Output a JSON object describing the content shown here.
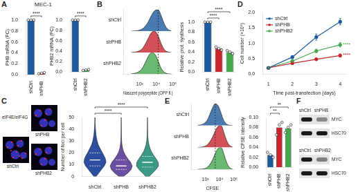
{
  "panel_labels": [
    "A",
    "B",
    "C",
    "D",
    "E",
    "F"
  ],
  "subtitle": "MEC-1",
  "chart_data": [
    {
      "type": "bar",
      "categories": [
        "shCtrl",
        "shPHB"
      ],
      "values": [
        1.0,
        0.03
      ],
      "replicates": [
        [
          1.0,
          1.0,
          1.0
        ],
        [
          0.02,
          0.03,
          0.04
        ]
      ],
      "colors": [
        "#1b5a9c",
        "#c8262c"
      ],
      "ylabel": "PHB mRNA (FC)",
      "ylim": [
        0,
        1
      ],
      "yticks": [
        {
          "value": 0,
          "label": "0.0"
        },
        0.2,
        0.4,
        0.6,
        0.8,
        {
          "value": 1,
          "label": "1.0"
        }
      ],
      "significance": [
        {
          "between": [
            "shCtrl",
            "shPHB"
          ],
          "label": "****"
        }
      ]
    },
    {
      "type": "bar",
      "categories": [
        "shCtrl",
        "shPHB2"
      ],
      "values": [
        1.0,
        0.04
      ],
      "replicates": [
        [
          1.0,
          1.0,
          1.0
        ],
        [
          0.03,
          0.04,
          0.05
        ]
      ],
      "colors": [
        "#1b5a9c",
        "#44a84c"
      ],
      "ylabel": "PHB2 mRNA (FC)",
      "ylim": [
        0,
        1
      ],
      "yticks": [
        {
          "value": 0,
          "label": "0.0"
        },
        0.2,
        0.4,
        0.6,
        0.8,
        {
          "value": 1,
          "label": "1.0"
        }
      ],
      "significance": [
        {
          "between": [
            "shCtrl",
            "shPHB2"
          ],
          "label": "****"
        }
      ]
    },
    {
      "type": "ridgeline",
      "xlabel": "Nascent polypeptide (OPP fl.)",
      "log": "x",
      "tick_labels": "x",
      "x": [
        300,
        500,
        800,
        1300,
        2000,
        3200,
        5000,
        8000,
        13000,
        20000,
        32000,
        50000,
        80000
      ],
      "xlim": [
        100,
        100000
      ],
      "xticks": [
        {
          "value": 1000,
          "label": "10³"
        },
        {
          "value": 10000,
          "label": "10⁴"
        },
        {
          "value": 100000,
          "label": "10⁵"
        }
      ],
      "ylim": [
        0,
        1
      ],
      "reference_line": 13000,
      "series": [
        {
          "name": "shPHB2",
          "color": "#44a84c",
          "values": [
            0.01,
            0.03,
            0.09,
            0.22,
            0.48,
            0.8,
            1.0,
            0.93,
            0.6,
            0.25,
            0.07,
            0.01,
            0
          ]
        },
        {
          "name": "shPHB",
          "color": "#c8262c",
          "values": [
            0,
            0.02,
            0.06,
            0.15,
            0.35,
            0.65,
            0.92,
            1.0,
            0.78,
            0.4,
            0.12,
            0.03,
            0
          ]
        },
        {
          "name": "shCtrl",
          "color": "#1b5a9c",
          "values": [
            0,
            0.01,
            0.03,
            0.08,
            0.2,
            0.42,
            0.72,
            0.95,
            1.0,
            0.7,
            0.3,
            0.08,
            0.01
          ]
        }
      ]
    },
    {
      "type": "bar",
      "categories": [
        "shCtrl",
        "shPHB",
        "shPHB2"
      ],
      "values": [
        1.0,
        0.47,
        0.4
      ],
      "replicates": [
        [
          1.0,
          1.0,
          1.0
        ],
        [
          0.5,
          0.47,
          0.44
        ],
        [
          0.43,
          0.4,
          0.37
        ]
      ],
      "colors": [
        "#1b5a9c",
        "#c8262c",
        "#44a84c"
      ],
      "ylabel": "Relative prot. synthesis",
      "ylim": [
        0,
        1
      ],
      "yticks": [
        {
          "value": 0,
          "label": "0.0"
        },
        0.2,
        0.4,
        0.6,
        0.8,
        {
          "value": 1,
          "label": "1.0"
        }
      ],
      "significance": [
        {
          "between": [
            "shCtrl",
            "shPHB"
          ],
          "label": "****"
        },
        {
          "between": [
            "shCtrl",
            "shPHB2"
          ],
          "label": "****"
        }
      ]
    },
    {
      "type": "violin",
      "categories": [
        "shCtrl",
        "shPHB",
        "shPHB2"
      ],
      "colors": [
        "#2b4f9e",
        "#6a4fa3",
        "#3a9a86"
      ],
      "ylabel": "Number of foci per cell",
      "ylim": [
        0,
        50
      ],
      "yticks": [
        0,
        10,
        20,
        30,
        40,
        50
      ],
      "violin_y": [
        0,
        3,
        6,
        9,
        12,
        15,
        18,
        21,
        24,
        27,
        30,
        35,
        40,
        45,
        50
      ],
      "violin_widths": [
        [
          0.1,
          0.35,
          0.6,
          0.85,
          1.0,
          0.95,
          0.8,
          0.62,
          0.45,
          0.3,
          0.2,
          0.1,
          0.05,
          0.02,
          0.01
        ],
        [
          0.2,
          0.6,
          0.9,
          1.0,
          0.85,
          0.6,
          0.38,
          0.22,
          0.12,
          0.07,
          0.04,
          0.02,
          0.01,
          0.005,
          0
        ],
        [
          0.15,
          0.45,
          0.78,
          1.0,
          0.97,
          0.78,
          0.55,
          0.36,
          0.22,
          0.13,
          0.07,
          0.03,
          0.015,
          0.005,
          0
        ]
      ],
      "medians": [
        14,
        9,
        12
      ],
      "quartiles": [
        [
          9,
          20
        ],
        [
          6,
          14
        ],
        [
          8,
          17
        ]
      ],
      "significance": [
        {
          "between": [
            "shCtrl",
            "shPHB"
          ],
          "label": "****"
        },
        {
          "between": [
            "shCtrl",
            "shPHB2"
          ],
          "label": "****"
        }
      ]
    },
    {
      "type": "line",
      "xlabel": "Time post-transfection (days)",
      "ylabel": "Cell number (×10⁶)",
      "x": [
        1,
        2,
        3,
        4
      ],
      "xlim": [
        0.75,
        4.25
      ],
      "xticks": [
        1,
        2,
        3,
        4
      ],
      "ylim": [
        0,
        2
      ],
      "yticks": [
        {
          "value": 0,
          "label": "0.0"
        },
        0.5,
        {
          "value": 1,
          "label": "1.0"
        },
        1.5,
        {
          "value": 2,
          "label": "2.0"
        }
      ],
      "legend": "upper left",
      "marker": "circle",
      "series": [
        {
          "name": "shCtrl",
          "color": "#1b5a9c",
          "values": [
            0.2,
            0.55,
            1.2,
            1.7
          ],
          "errors": [
            0.02,
            0.05,
            0.1,
            0.1
          ]
        },
        {
          "name": "shPHB",
          "color": "#c8262c",
          "values": [
            0.2,
            0.35,
            0.48,
            0.6
          ],
          "errors": [
            0.02,
            0.03,
            0.04,
            0.05
          ]
        },
        {
          "name": "shPHB2",
          "color": "#44a84c",
          "values": [
            0.2,
            0.42,
            0.75,
            0.95
          ],
          "errors": [
            0.02,
            0.04,
            0.06,
            0.07
          ]
        }
      ],
      "annotations": [
        {
          "x": 4,
          "series": "shPHB2",
          "label": "****"
        },
        {
          "x": 4,
          "series": "shPHB",
          "label": "****"
        }
      ]
    },
    {
      "type": "ridgeline",
      "xlabel": "CFSE",
      "log": "x",
      "tick_labels": "x",
      "x": [
        300,
        500,
        800,
        1300,
        2000,
        3200,
        5000,
        8000,
        13000,
        20000,
        32000,
        50000,
        80000
      ],
      "xlim": [
        100,
        100000
      ],
      "xticks": [
        {
          "value": 1000,
          "label": "10³"
        },
        {
          "value": 10000,
          "label": "10⁴"
        },
        {
          "value": 100000,
          "label": "10⁵"
        }
      ],
      "ylim": [
        0,
        1
      ],
      "reference_line": 5000,
      "series": [
        {
          "name": "shPHB2",
          "color": "#44a84c",
          "values": [
            0,
            0.01,
            0.03,
            0.08,
            0.2,
            0.42,
            0.72,
            0.95,
            1.0,
            0.7,
            0.3,
            0.08,
            0.01
          ]
        },
        {
          "name": "shPHB",
          "color": "#c8262c",
          "values": [
            0,
            0.01,
            0.04,
            0.1,
            0.24,
            0.46,
            0.75,
            0.96,
            1.0,
            0.68,
            0.3,
            0.09,
            0.02
          ]
        },
        {
          "name": "shCtrl",
          "color": "#1b5a9c",
          "values": [
            0.01,
            0.03,
            0.09,
            0.22,
            0.48,
            0.8,
            1.0,
            0.9,
            0.55,
            0.22,
            0.06,
            0.01,
            0
          ]
        }
      ]
    },
    {
      "type": "bar",
      "categories": [
        "shCtrl",
        "shPHB",
        "shPHB2"
      ],
      "values": [
        0.025,
        0.08,
        0.078
      ],
      "replicates": [
        [
          0.03,
          0.025,
          0.02
        ],
        [
          0.065,
          0.085,
          0.09
        ],
        [
          0.07,
          0.08,
          0.085
        ]
      ],
      "colors": [
        "#1b5a9c",
        "#c8262c",
        "#44a84c"
      ],
      "ylabel": "Relative CFSE intensity",
      "ylim": [
        0,
        0.1
      ],
      "yticks": [
        {
          "value": 0,
          "label": "0.00"
        },
        0.02,
        0.04,
        0.06,
        0.08,
        {
          "value": 0.1,
          "label": "0.10"
        }
      ],
      "significance": [
        {
          "between": [
            "shCtrl",
            "shPHB"
          ],
          "label": "**"
        },
        {
          "between": [
            "shCtrl",
            "shPHB2"
          ],
          "label": "**"
        }
      ]
    }
  ],
  "micrographs": {
    "title": "eIF4E/eIF4G",
    "labels": [
      "shCtrl",
      "shPHB",
      "shPHB2"
    ]
  },
  "blots": [
    {
      "lanes": [
        "shCtrl",
        "shPHB"
      ],
      "proteins": [
        "MYC",
        "HSC70"
      ],
      "band_intensity": [
        [
          1,
          0.45
        ],
        [
          1,
          1
        ]
      ]
    },
    {
      "lanes": [
        "shCtrl",
        "shPHB2"
      ],
      "proteins": [
        "MYC",
        "HSC70"
      ],
      "band_intensity": [
        [
          1,
          0.5
        ],
        [
          1,
          1
        ]
      ]
    }
  ]
}
